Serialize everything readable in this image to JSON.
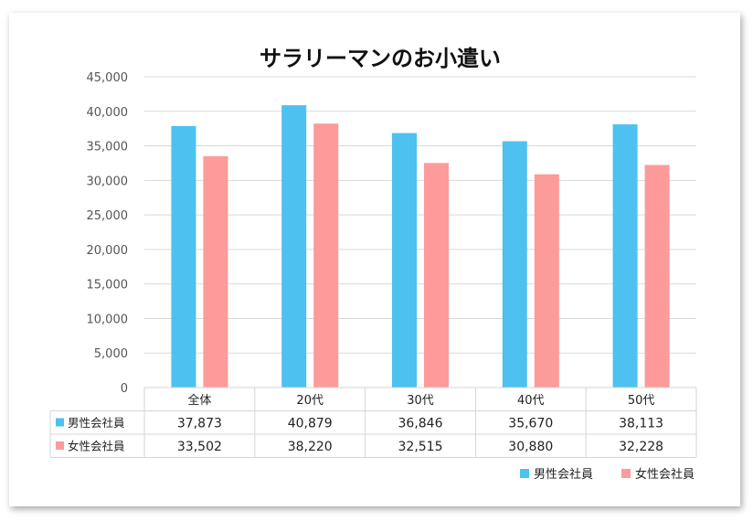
{
  "chart_data": {
    "type": "bar",
    "title": "サラリーマンのお小遣い",
    "categories": [
      "全体",
      "20代",
      "30代",
      "40代",
      "50代"
    ],
    "series": [
      {
        "name": "男性会社員",
        "color": "#4dc1ef",
        "values": [
          37873,
          40879,
          36846,
          35670,
          38113
        ]
      },
      {
        "name": "女性会社員",
        "color": "#fd9a9a",
        "values": [
          33502,
          38220,
          32515,
          30880,
          32228
        ]
      }
    ],
    "ylim": [
      0,
      45000
    ],
    "yticks": [
      0,
      5000,
      10000,
      15000,
      20000,
      25000,
      30000,
      35000,
      40000,
      45000
    ],
    "grid": true,
    "legend": "bottom-right",
    "data_table": true
  }
}
